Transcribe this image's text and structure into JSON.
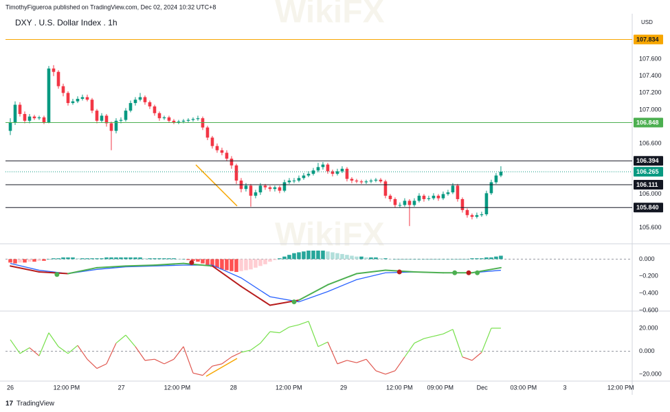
{
  "header": {
    "byline": "TimothyFigueroa published on TradingView.com, Dec 02, 2024 10:32 UTC+8",
    "brand": "TradingView",
    "watermark": "WikiFX"
  },
  "chart_data": [
    {
      "type": "candlestick",
      "title": "DXY . U.S. Dollar Index . 1h",
      "currency": "USD",
      "up_color": "#089981",
      "down_color": "#f23645",
      "xlim": [
        -1,
        129.3
      ],
      "ylim": [
        105.41,
        108.14
      ],
      "yticks": [
        {
          "value": 107.6,
          "label": "107.600"
        },
        {
          "value": 107.4,
          "label": "107.400"
        },
        {
          "value": 107.2,
          "label": "107.200"
        },
        {
          "value": 107,
          "label": "107.000"
        },
        {
          "value": 106.6,
          "label": "106.600"
        },
        {
          "value": 106,
          "label": "106.000"
        },
        {
          "value": 105.6,
          "label": "105.600"
        }
      ],
      "levels": [
        {
          "value": 107.834,
          "label": "107.834",
          "color": "#f7a600",
          "text_color": "#131722",
          "style": "solid"
        },
        {
          "value": 106.848,
          "label": "106.848",
          "color": "#4caf50",
          "text_color": "#ffffff",
          "style": "solid"
        },
        {
          "value": 106.394,
          "label": "106.394",
          "color": "#131722",
          "text_color": "#ffffff",
          "style": "solid"
        },
        {
          "value": 106.265,
          "label": "106.265",
          "color": "#089981",
          "text_color": "#ffffff",
          "style": "dotted"
        },
        {
          "value": 106.111,
          "label": "106.111",
          "color": "#131722",
          "text_color": "#ffffff",
          "style": "solid"
        },
        {
          "value": 105.84,
          "label": "105.840",
          "color": "#131722",
          "text_color": "#ffffff",
          "style": "solid"
        }
      ],
      "x": [
        0,
        1,
        2,
        3,
        4,
        5,
        6,
        7,
        8,
        9,
        10,
        11,
        12,
        13,
        14,
        15,
        16,
        17,
        18,
        19,
        20,
        21,
        22,
        23,
        24,
        25,
        26,
        27,
        28,
        29,
        30,
        31,
        32,
        33,
        34,
        35,
        36,
        37,
        38,
        39,
        40,
        41,
        42,
        43,
        44,
        45,
        46,
        47,
        48,
        49,
        50,
        51,
        52,
        53,
        54,
        55,
        56,
        57,
        58,
        59,
        60,
        61,
        62,
        63,
        64,
        65,
        66,
        67,
        68,
        69,
        70,
        71,
        72,
        73,
        74,
        75,
        76,
        77,
        78,
        79,
        80,
        81,
        82,
        83,
        84,
        85,
        86,
        87,
        88,
        89,
        90,
        91,
        92,
        93,
        94,
        95,
        96,
        97,
        98,
        99,
        100,
        101,
        102
      ],
      "open": [
        106.75,
        106.85,
        107.06,
        106.95,
        106.87,
        106.92,
        106.9,
        106.91,
        106.85,
        107.49,
        107.45,
        107.28,
        107.2,
        107.08,
        107.1,
        107.13,
        107.15,
        107.12,
        106.99,
        106.87,
        106.93,
        106.84,
        106.75,
        106.87,
        106.88,
        106.99,
        107.08,
        107.12,
        107.15,
        107.09,
        107.04,
        106.96,
        106.9,
        106.91,
        106.87,
        106.85,
        106.86,
        106.87,
        106.88,
        106.89,
        106.9,
        106.79,
        106.67,
        106.57,
        106.52,
        106.49,
        106.42,
        106.34,
        106.16,
        106.06,
        106.1,
        105.98,
        106.02,
        106.1,
        106.08,
        106.06,
        106.08,
        106.04,
        106.14,
        106.16,
        106.16,
        106.19,
        106.22,
        106.24,
        106.28,
        106.32,
        106.35,
        106.27,
        106.24,
        106.27,
        106.3,
        106.18,
        106.16,
        106.15,
        106.14,
        106.15,
        106.16,
        106.17,
        106.15,
        105.98,
        105.94,
        105.87,
        105.87,
        105.92,
        105.87,
        105.92,
        105.98,
        105.94,
        105.95,
        105.98,
        105.95,
        106.0,
        106.02,
        106.1,
        105.94,
        105.81,
        105.75,
        105.73,
        105.75,
        105.76,
        106.01,
        106.14,
        106.22
      ],
      "high": [
        106.9,
        107.1,
        107.09,
        106.98,
        106.95,
        106.94,
        106.93,
        106.93,
        107.52,
        107.53,
        107.47,
        107.31,
        107.22,
        107.13,
        107.16,
        107.18,
        107.18,
        107.14,
        107.01,
        106.96,
        106.95,
        106.86,
        106.9,
        106.91,
        107.02,
        107.11,
        107.15,
        107.2,
        107.17,
        107.11,
        107.06,
        106.98,
        106.93,
        106.93,
        106.89,
        106.88,
        106.89,
        106.9,
        106.91,
        106.93,
        106.92,
        106.81,
        106.69,
        106.6,
        106.55,
        106.52,
        106.45,
        106.36,
        106.19,
        106.13,
        106.12,
        106.05,
        106.13,
        106.12,
        106.1,
        106.1,
        106.1,
        106.17,
        106.19,
        106.19,
        106.22,
        106.25,
        106.27,
        106.31,
        106.37,
        106.38,
        106.37,
        106.29,
        106.3,
        106.33,
        106.32,
        106.2,
        106.18,
        106.17,
        106.17,
        106.18,
        106.19,
        106.19,
        106.17,
        106.0,
        105.96,
        105.9,
        105.95,
        105.94,
        105.95,
        106.01,
        106.0,
        105.98,
        106.01,
        106.0,
        106.03,
        106.05,
        106.13,
        106.12,
        105.96,
        105.83,
        105.77,
        105.78,
        105.79,
        106.04,
        106.17,
        106.25,
        106.33
      ],
      "low": [
        106.7,
        106.82,
        106.92,
        106.84,
        106.84,
        106.88,
        106.88,
        106.83,
        106.84,
        107.4,
        107.25,
        107.16,
        107.05,
        107.06,
        107.08,
        107.11,
        107.1,
        106.96,
        106.84,
        106.85,
        106.8,
        106.52,
        106.72,
        106.84,
        106.86,
        106.97,
        107.05,
        107.1,
        107.06,
        107.01,
        106.93,
        106.87,
        106.88,
        106.85,
        106.83,
        106.83,
        106.84,
        106.85,
        106.86,
        106.87,
        106.76,
        106.64,
        106.54,
        106.49,
        106.46,
        106.39,
        106.3,
        106.12,
        106.02,
        106.03,
        105.85,
        105.95,
        105.99,
        106.05,
        106.03,
        106.03,
        106.01,
        106.02,
        106.12,
        106.13,
        106.14,
        106.17,
        106.2,
        106.22,
        106.26,
        106.29,
        106.24,
        106.21,
        106.22,
        106.25,
        106.15,
        106.13,
        106.13,
        106.12,
        106.12,
        106.13,
        106.14,
        106.13,
        105.95,
        105.91,
        105.84,
        105.84,
        105.85,
        105.62,
        105.85,
        105.9,
        105.91,
        105.92,
        105.93,
        105.92,
        105.93,
        105.98,
        106.0,
        105.91,
        105.78,
        105.72,
        105.7,
        105.71,
        105.73,
        105.74,
        105.99,
        106.12,
        106.2
      ],
      "close": [
        106.85,
        107.06,
        106.95,
        106.87,
        106.92,
        106.9,
        106.91,
        106.85,
        107.49,
        107.45,
        107.28,
        107.2,
        107.08,
        107.1,
        107.13,
        107.15,
        107.12,
        106.99,
        106.87,
        106.93,
        106.84,
        106.75,
        106.87,
        106.88,
        106.99,
        107.08,
        107.12,
        107.15,
        107.09,
        107.04,
        106.96,
        106.9,
        106.91,
        106.87,
        106.85,
        106.86,
        106.87,
        106.88,
        106.89,
        106.9,
        106.79,
        106.67,
        106.57,
        106.52,
        106.49,
        106.42,
        106.34,
        106.16,
        106.06,
        106.1,
        105.98,
        106.02,
        106.1,
        106.08,
        106.06,
        106.08,
        106.04,
        106.14,
        106.16,
        106.16,
        106.19,
        106.22,
        106.24,
        106.28,
        106.32,
        106.35,
        106.27,
        106.24,
        106.27,
        106.3,
        106.18,
        106.16,
        106.15,
        106.14,
        106.15,
        106.16,
        106.17,
        106.15,
        105.98,
        105.94,
        105.87,
        105.87,
        105.92,
        105.87,
        105.92,
        105.98,
        105.94,
        105.95,
        105.98,
        105.95,
        106.0,
        106.02,
        106.1,
        105.94,
        105.81,
        105.75,
        105.73,
        105.75,
        105.76,
        106.01,
        106.14,
        106.22,
        106.265
      ]
    },
    {
      "type": "macd",
      "xlim": [
        -1,
        129.3
      ],
      "ylim": [
        -0.608,
        0.18
      ],
      "yticks": [
        {
          "value": 0,
          "label": "0.000"
        },
        {
          "value": -0.2,
          "label": "−0.200"
        },
        {
          "value": -0.4,
          "label": "−0.400"
        },
        {
          "value": -0.6,
          "label": "−0.600"
        }
      ],
      "zero_line": true,
      "histogram": {
        "colors": [
          "#26a69a",
          "#b2dfdb",
          "#ff5252",
          "#ffcdd2"
        ],
        "values": [
          -0.04,
          -0.05,
          -0.04,
          -0.04,
          -0.03,
          -0.03,
          -0.02,
          -0.02,
          0,
          0.01,
          0.01,
          0.02,
          0.02,
          0.02,
          0.01,
          0.01,
          0.01,
          0.01,
          0.01,
          0.01,
          0.02,
          0.02,
          0.02,
          0.02,
          0.02,
          0.02,
          0.02,
          0.02,
          0.01,
          0.01,
          0.01,
          0.01,
          0.01,
          0.01,
          0.01,
          0,
          0,
          -0.01,
          -0.02,
          -0.03,
          -0.05,
          -0.07,
          -0.09,
          -0.1,
          -0.12,
          -0.13,
          -0.14,
          -0.15,
          -0.14,
          -0.13,
          -0.12,
          -0.1,
          -0.08,
          -0.06,
          -0.03,
          -0.01,
          0.01,
          0.03,
          0.05,
          0.07,
          0.08,
          0.09,
          0.1,
          0.1,
          0.1,
          0.1,
          0.09,
          0.08,
          0.07,
          0.06,
          0.05,
          0.04,
          0.03,
          0.03,
          0.02,
          0.02,
          0.02,
          0.01,
          0.01,
          0,
          0,
          0,
          0,
          0,
          0,
          0,
          0,
          0,
          0,
          0,
          0,
          0,
          0,
          0,
          0,
          0,
          0.01,
          0.01,
          0.01,
          0.02,
          0.02,
          0.03,
          0.04
        ]
      },
      "x": [
        0,
        6,
        12,
        18,
        24,
        30,
        36,
        42,
        48,
        54,
        60,
        66,
        72,
        78,
        84,
        90,
        96,
        102
      ],
      "macd": {
        "up_color": "#4caf50",
        "down_color": "#b71c1c",
        "values": [
          -0.08,
          -0.15,
          -0.17,
          -0.1,
          -0.08,
          -0.07,
          -0.05,
          -0.08,
          -0.32,
          -0.54,
          -0.48,
          -0.3,
          -0.17,
          -0.13,
          -0.15,
          -0.16,
          -0.16,
          -0.1
        ]
      },
      "signal": {
        "color": "#2962ff",
        "values": [
          -0.05,
          -0.13,
          -0.17,
          -0.12,
          -0.09,
          -0.08,
          -0.07,
          -0.07,
          -0.22,
          -0.44,
          -0.5,
          -0.38,
          -0.24,
          -0.16,
          -0.15,
          -0.16,
          -0.16,
          -0.13
        ]
      },
      "markers": [
        {
          "x": 9.7,
          "value": -0.18,
          "color": "#4caf50"
        },
        {
          "x": 37.7,
          "value": -0.04,
          "color": "#b71c1c"
        },
        {
          "x": 59,
          "value": -0.5,
          "color": "#4caf50"
        },
        {
          "x": 80.9,
          "value": -0.15,
          "color": "#b71c1c"
        },
        {
          "x": 92.4,
          "value": -0.16,
          "color": "#4caf50"
        },
        {
          "x": 95.3,
          "value": -0.16,
          "color": "#b71c1c"
        },
        {
          "x": 97.1,
          "value": -0.16,
          "color": "#4caf50"
        }
      ]
    },
    {
      "type": "oscillator",
      "xlim": [
        -1,
        129.3
      ],
      "ylim": [
        -26,
        33.7
      ],
      "yticks": [
        {
          "value": 20,
          "label": "20.000"
        },
        {
          "value": 0,
          "label": "0.000"
        },
        {
          "value": -20,
          "label": "−20.000"
        }
      ],
      "zero_line": true,
      "up_color": "#76e04a",
      "down_color": "#e0574f",
      "x": [
        0,
        2,
        4,
        6,
        8,
        10,
        12,
        14,
        16,
        18,
        20,
        22,
        24,
        26,
        28,
        30,
        32,
        34,
        36,
        38,
        40,
        42,
        44,
        46,
        48,
        50,
        52,
        54,
        56,
        58,
        60,
        62,
        64,
        66,
        68,
        70,
        72,
        74,
        76,
        78,
        80,
        82,
        84,
        86,
        88,
        90,
        92,
        94,
        96,
        98,
        100,
        102
      ],
      "values": [
        10,
        -2,
        3,
        -4,
        16,
        4,
        -2,
        5,
        -7,
        -15,
        -11,
        7,
        14,
        4,
        -8,
        -7,
        -11,
        -7,
        4,
        -19,
        -21,
        -13,
        -11,
        -5,
        -1,
        1,
        7,
        17,
        16,
        21,
        23,
        26,
        4,
        8,
        -11,
        -8,
        -10,
        -7,
        -17,
        -20,
        -17,
        -5,
        7,
        11,
        13,
        15,
        19,
        -5,
        -8,
        -1,
        20,
        20
      ],
      "xticks": [
        {
          "value": 0,
          "label": "26"
        },
        {
          "value": 11.7,
          "label": "12:00 PM"
        },
        {
          "value": 23.1,
          "label": "27"
        },
        {
          "value": 34.7,
          "label": "12:00 PM"
        },
        {
          "value": 46.4,
          "label": "28"
        },
        {
          "value": 57.9,
          "label": "12:00 PM"
        },
        {
          "value": 69.3,
          "label": "29"
        },
        {
          "value": 80.9,
          "label": "12:00 PM"
        },
        {
          "value": 89.4,
          "label": "09:00 PM"
        },
        {
          "value": 98.1,
          "label": "Dec"
        },
        {
          "value": 106.7,
          "label": "03:00 PM"
        },
        {
          "value": 115.3,
          "label": "3"
        },
        {
          "value": 126.9,
          "label": "12:00 PM"
        }
      ]
    }
  ]
}
